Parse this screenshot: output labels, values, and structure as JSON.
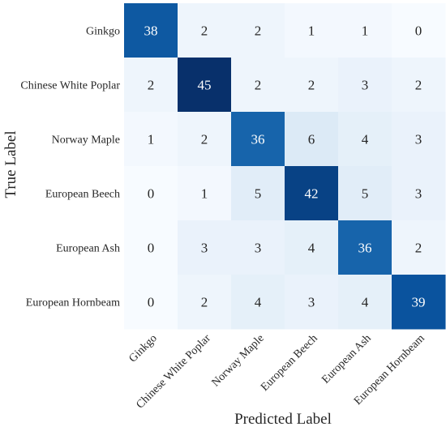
{
  "chart_data": {
    "type": "heatmap",
    "title": "",
    "xlabel": "Predicted Label",
    "ylabel": "True Label",
    "x_categories": [
      "Ginkgo",
      "Chinese White Poplar",
      "Norway Maple",
      "European Beech",
      "European Ash",
      "European Hornbeam"
    ],
    "y_categories": [
      "Ginkgo",
      "Chinese White Poplar",
      "Norway Maple",
      "European Beech",
      "European Ash",
      "European Hornbeam"
    ],
    "values": [
      [
        38,
        2,
        2,
        1,
        1,
        0
      ],
      [
        2,
        45,
        2,
        2,
        3,
        2
      ],
      [
        1,
        2,
        36,
        6,
        4,
        3
      ],
      [
        0,
        1,
        5,
        42,
        5,
        3
      ],
      [
        0,
        3,
        3,
        4,
        36,
        2
      ],
      [
        0,
        2,
        4,
        3,
        4,
        39
      ]
    ],
    "colormap": "Blues",
    "value_range": [
      0,
      45
    ],
    "grid": false,
    "legend": "none",
    "colors": {
      "low": "#f7fbff",
      "mid": "#6aaed6",
      "high": "#08306b",
      "text_dark": "#262626",
      "text_light": "#ffffff"
    }
  }
}
